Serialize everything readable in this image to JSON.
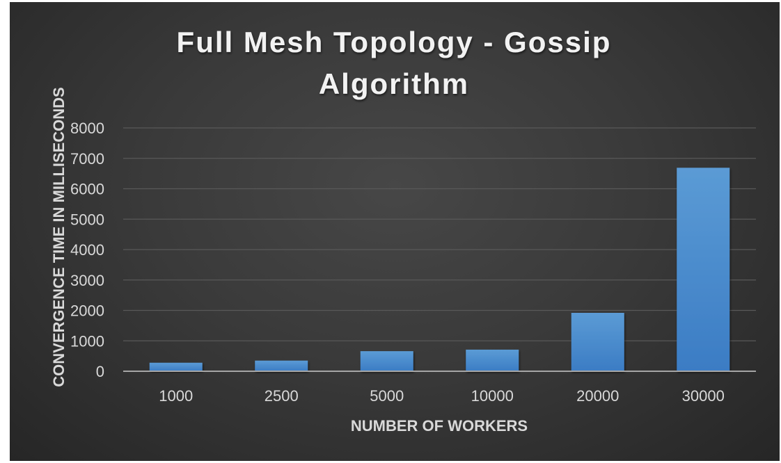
{
  "chart_data": {
    "type": "bar",
    "title_lines": [
      "Full Mesh Topology - Gossip",
      "Algorithm"
    ],
    "xlabel": "NUMBER OF WORKERS",
    "ylabel": "CONVERGENCE TIME IN MILLISECONDS",
    "categories": [
      "1000",
      "2500",
      "5000",
      "10000",
      "20000",
      "30000"
    ],
    "values": [
      280,
      350,
      660,
      710,
      1920,
      6690
    ],
    "ylim": [
      0,
      8000
    ],
    "yticks": [
      "0",
      "1000",
      "2000",
      "3000",
      "4000",
      "5000",
      "6000",
      "7000",
      "8000"
    ],
    "grid": true,
    "legend": "none",
    "colors": {
      "bar_top": "#5b9bd5",
      "bar_bottom": "#3b7cc4",
      "gridline": "#595959",
      "axis_line": "#a6a6a6",
      "background": "#3a3a3a"
    }
  }
}
